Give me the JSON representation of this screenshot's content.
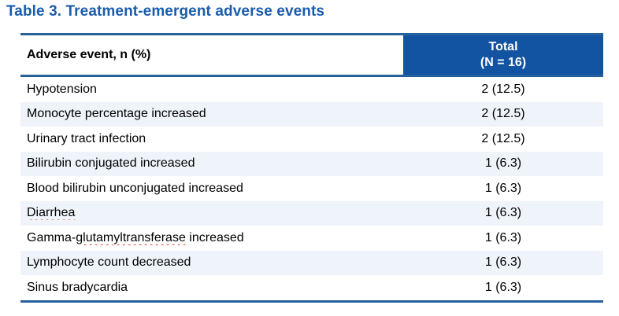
{
  "title": "Table 3. Treatment-emergent adverse events",
  "table": {
    "header": {
      "col1": "Adverse event, n (%)",
      "col2_line1": "Total",
      "col2_line2": "(N = 16)"
    },
    "rows": [
      {
        "label": "Hypotension",
        "value": "2 (12.5)"
      },
      {
        "label": "Monocyte percentage increased",
        "value": "2 (12.5)"
      },
      {
        "label": "Urinary tract infection",
        "value": "2 (12.5)"
      },
      {
        "label": "Bilirubin conjugated increased",
        "value": "1 (6.3)"
      },
      {
        "label": "Blood bilirubin unconjugated increased",
        "value": "1 (6.3)"
      },
      {
        "label": "Diarrhea",
        "value": "1 (6.3)",
        "misspelled": "Diarrhea"
      },
      {
        "label": "Gamma-glutamyltransferase increased",
        "value": "1 (6.3)",
        "misspelled": "glutamyltransferase"
      },
      {
        "label": "Lymphocyte count decreased",
        "value": "1 (6.3)"
      },
      {
        "label": "Sinus bradycardia",
        "value": "1 (6.3)"
      }
    ]
  },
  "colors": {
    "title_blue": "#1A5CAC",
    "header_fill_blue": "#1253A2",
    "border_blue": "#26619C",
    "stripe_light_blue": "#EFF3FA",
    "spellcheck_red": "#E0452F",
    "header_text_white": "#FFFFFF",
    "body_text_black": "#000000"
  }
}
